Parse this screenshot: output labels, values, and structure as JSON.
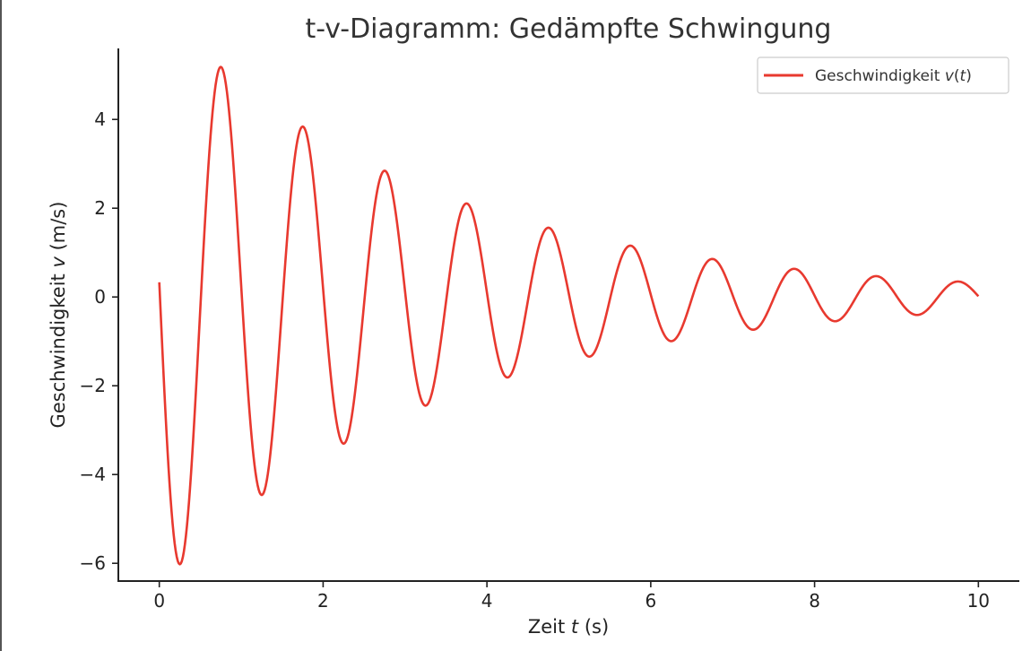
{
  "chart_data": {
    "type": "line",
    "title": "t-v-Diagramm: Gedämpfte Schwingung",
    "xlabel": {
      "prefix": "Zeit ",
      "var": "t",
      "suffix": " (s)"
    },
    "ylabel": {
      "prefix": "Geschwindigkeit ",
      "var": "v",
      "suffix": " (m/s)"
    },
    "xlim": [
      -0.5,
      10.5
    ],
    "ylim": [
      -6.4,
      5.6
    ],
    "xticks": [
      0,
      2,
      4,
      6,
      8,
      10
    ],
    "xtick_labels": [
      "0",
      "2",
      "4",
      "6",
      "8",
      "10"
    ],
    "yticks": [
      -6,
      -4,
      -2,
      0,
      2,
      4
    ],
    "ytick_labels": [
      "−6",
      "−4",
      "−2",
      "0",
      "2",
      "4"
    ],
    "grid": false,
    "legend_position": "top-right",
    "series": [
      {
        "legend": {
          "prefix": "Geschwindigkeit ",
          "var": "v",
          "paren_open": "(",
          "arg": "t",
          "paren_close": ")"
        },
        "color": "#e8392f",
        "model": {
          "amplitude": 6.5,
          "decay": 0.3,
          "omega": 6.2832,
          "phase": 1.52
        },
        "x_range": [
          0,
          10
        ],
        "x": [
          0,
          0.24,
          0.74,
          1.24,
          1.74,
          2.24,
          2.74,
          3.24,
          3.74,
          4.24,
          4.74,
          5.24,
          5.74,
          6.24,
          6.74,
          7.24,
          7.74,
          8.24,
          8.74,
          9.24,
          9.74,
          10
        ],
        "y": [
          -0.3,
          -5.85,
          5.05,
          -4.32,
          3.72,
          -3.2,
          2.75,
          -2.37,
          2.04,
          -1.76,
          1.51,
          -1.3,
          1.12,
          -0.96,
          0.83,
          -0.71,
          0.61,
          -0.53,
          0.45,
          -0.39,
          0.34,
          0.0
        ]
      }
    ]
  }
}
